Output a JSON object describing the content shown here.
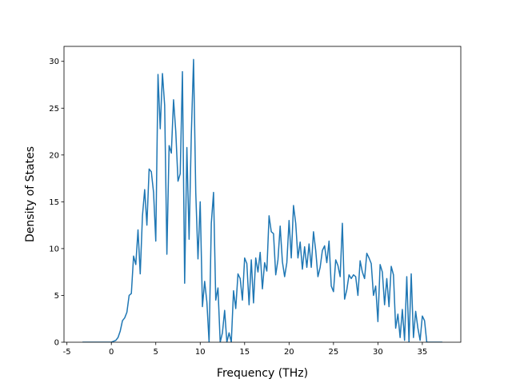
{
  "chart_data": {
    "type": "line",
    "xlabel": "Frequency (THz)",
    "ylabel": "Density of States",
    "x": [
      -3.25,
      -3.0,
      -2.75,
      -2.5,
      -2.25,
      -2.0,
      -1.75,
      -1.5,
      -1.25,
      -1.0,
      -0.75,
      -0.5,
      -0.25,
      0.0,
      0.25,
      0.5,
      0.75,
      1.0,
      1.25,
      1.5,
      1.75,
      2.0,
      2.25,
      2.5,
      2.75,
      3.0,
      3.25,
      3.5,
      3.75,
      4.0,
      4.25,
      4.5,
      4.75,
      5.0,
      5.25,
      5.5,
      5.75,
      6.0,
      6.25,
      6.5,
      6.75,
      7.0,
      7.25,
      7.5,
      7.75,
      8.0,
      8.25,
      8.5,
      8.75,
      9.0,
      9.25,
      9.5,
      9.75,
      10.0,
      10.25,
      10.5,
      10.75,
      11.0,
      11.25,
      11.5,
      11.75,
      12.0,
      12.25,
      12.5,
      12.75,
      13.0,
      13.25,
      13.5,
      13.75,
      14.0,
      14.25,
      14.5,
      14.75,
      15.0,
      15.25,
      15.5,
      15.75,
      16.0,
      16.25,
      16.5,
      16.75,
      17.0,
      17.25,
      17.5,
      17.75,
      18.0,
      18.25,
      18.5,
      18.75,
      19.0,
      19.25,
      19.5,
      19.75,
      20.0,
      20.25,
      20.5,
      20.75,
      21.0,
      21.25,
      21.5,
      21.75,
      22.0,
      22.25,
      22.5,
      22.75,
      23.0,
      23.25,
      23.5,
      23.75,
      24.0,
      24.25,
      24.5,
      24.75,
      25.0,
      25.25,
      25.5,
      25.75,
      26.0,
      26.25,
      26.5,
      26.75,
      27.0,
      27.25,
      27.5,
      27.75,
      28.0,
      28.25,
      28.5,
      28.75,
      29.0,
      29.25,
      29.5,
      29.75,
      30.0,
      30.25,
      30.5,
      30.75,
      31.0,
      31.25,
      31.5,
      31.75,
      32.0,
      32.25,
      32.5,
      32.75,
      33.0,
      33.25,
      33.5,
      33.75,
      34.0,
      34.25,
      34.5,
      34.75,
      35.0,
      35.25,
      35.5,
      35.75,
      36.0,
      36.25,
      36.5,
      36.75,
      37.0,
      37.25
    ],
    "series": [
      {
        "name": "DOS",
        "color": "#1f77b4",
        "values": [
          0,
          0,
          0,
          0,
          0,
          0,
          0,
          0,
          0,
          0,
          0,
          0,
          0,
          0,
          0.1,
          0.2,
          0.5,
          1.2,
          2.3,
          2.6,
          3.2,
          5.0,
          5.2,
          9.2,
          8.3,
          12.0,
          7.3,
          13.5,
          16.3,
          12.5,
          18.5,
          18.2,
          16.0,
          10.8,
          28.6,
          22.8,
          28.7,
          25.3,
          9.4,
          21.0,
          20.2,
          25.9,
          22.5,
          17.2,
          18.0,
          28.9,
          6.3,
          20.8,
          11.0,
          22.2,
          30.2,
          16.0,
          8.9,
          15.0,
          3.8,
          6.5,
          4.3,
          0.0,
          12.7,
          16.0,
          4.5,
          5.8,
          0.0,
          1.0,
          3.4,
          0.0,
          1.0,
          0.0,
          5.5,
          3.6,
          7.3,
          6.8,
          4.5,
          9.0,
          8.4,
          4.0,
          8.8,
          4.2,
          9.0,
          7.5,
          9.6,
          5.7,
          8.5,
          7.6,
          13.5,
          11.8,
          11.6,
          7.2,
          8.8,
          12.4,
          8.6,
          7.0,
          8.5,
          13.0,
          9.0,
          14.6,
          12.7,
          9.0,
          10.7,
          7.8,
          10.2,
          8.0,
          10.5,
          8.0,
          11.8,
          9.8,
          7.0,
          8.0,
          9.8,
          10.3,
          8.5,
          10.8,
          6.0,
          5.4,
          8.8,
          8.2,
          7.0,
          12.7,
          4.6,
          5.6,
          7.2,
          6.8,
          7.2,
          7.0,
          5.0,
          8.7,
          7.5,
          6.8,
          9.5,
          9.0,
          8.4,
          5.0,
          6.0,
          2.2,
          8.3,
          7.5,
          4.0,
          6.8,
          3.8,
          8.1,
          7.2,
          1.5,
          3.0,
          0.5,
          3.5,
          0.2,
          7.0,
          0.0,
          7.3,
          0.5,
          3.3,
          1.5,
          0.2,
          2.8,
          2.3,
          0.0,
          0,
          0,
          0,
          0,
          0,
          0,
          0
        ]
      }
    ],
    "xlim": [
      -5.33,
      39.33
    ],
    "ylim": [
      0,
      31.6
    ],
    "xticks": [
      -5,
      0,
      5,
      10,
      15,
      20,
      25,
      30,
      35
    ],
    "yticks": [
      0,
      5,
      10,
      15,
      20,
      25,
      30
    ],
    "grid": false
  }
}
